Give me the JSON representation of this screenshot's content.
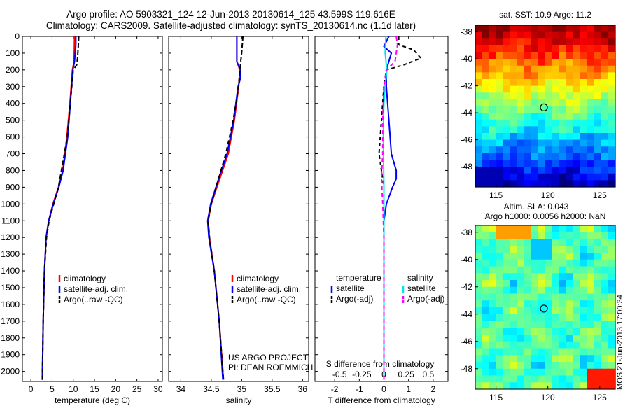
{
  "header": {
    "line1": "Argo profile: AO 5903321_124 12-Jun-2013 20130614_125 43.599S 119.616E",
    "line2": "Climatology: CARS2009. Satellite-adjusted climatology: synTS_20130614.nc (1.1d later)"
  },
  "stamp": "IMOS 21-Jun-2013 17:00:34",
  "colors": {
    "climatology": "#ff0000",
    "satellite": "#0000ff",
    "argo": "#000000",
    "satellite_s": "#00e5ee",
    "argo_s": "#ff00ff"
  },
  "chart_data": [
    {
      "id": "temp",
      "type": "line",
      "xlabel": "temperature (deg C)",
      "ylabel": "",
      "xlim": [
        -2,
        31
      ],
      "ylim": [
        2060,
        0
      ],
      "xticks": [
        0,
        5,
        10,
        15,
        20,
        25,
        30
      ],
      "yticks": [
        0,
        100,
        200,
        300,
        400,
        500,
        600,
        700,
        800,
        900,
        1000,
        1100,
        1200,
        1300,
        1400,
        1500,
        1600,
        1700,
        1800,
        1900,
        2000
      ],
      "legend": [
        "climatology",
        "satellite-adj. clim.",
        "Argo(..raw -QC)"
      ],
      "legend_position": "lower-right",
      "series": [
        {
          "name": "climatology",
          "color": "#ff0000",
          "dash": "",
          "y": [
            0,
            150,
            200,
            400,
            600,
            800,
            900,
            1000,
            1100,
            1200,
            1400,
            1700,
            2050
          ],
          "values": [
            10.3,
            10.2,
            9.8,
            9.2,
            8.5,
            7.5,
            6.5,
            5.2,
            4.2,
            3.6,
            3.2,
            2.9,
            2.7
          ]
        },
        {
          "name": "satellite-adj. clim.",
          "color": "#0000ff",
          "dash": "",
          "y": [
            0,
            50,
            150,
            200,
            400,
            600,
            800,
            900,
            1000,
            1100,
            1200,
            1400,
            1700,
            2050
          ],
          "values": [
            10.6,
            10.6,
            10.3,
            9.9,
            9.3,
            8.7,
            7.6,
            6.6,
            5.3,
            4.2,
            3.6,
            3.2,
            2.9,
            2.7
          ]
        },
        {
          "name": "Argo(..raw -QC)",
          "color": "#000000",
          "dash": "6,4",
          "y": [
            0,
            50,
            130,
            170,
            200,
            400,
            600,
            800,
            900,
            1000,
            1100,
            1200,
            1400,
            1700,
            2050
          ],
          "values": [
            11.3,
            11.2,
            11.0,
            10.8,
            10.0,
            9.3,
            8.6,
            7.2,
            6.5,
            5.4,
            4.3,
            3.7,
            3.2,
            2.9,
            2.7
          ]
        }
      ]
    },
    {
      "id": "salt",
      "type": "line",
      "xlabel": "salinity",
      "ylabel": "",
      "xlim": [
        33.8,
        36.1
      ],
      "ylim": [
        2060,
        0
      ],
      "xticks": [
        34,
        34.5,
        35,
        35.5,
        36
      ],
      "xtick_labels": [
        "34",
        "34.5",
        "35",
        "35.5",
        "36"
      ],
      "legend": [
        "climatology",
        "satellite-adj. clim.",
        "Argo(..raw -QC)"
      ],
      "legend_position": "lower-right",
      "annotation": [
        "US ARGO PROJECT",
        "PI: DEAN ROEMMICH"
      ],
      "series": [
        {
          "name": "climatology",
          "color": "#ff0000",
          "dash": "",
          "y": [
            0,
            150,
            200,
            300,
            500,
            700,
            850,
            1000,
            1100,
            1200,
            1400,
            1700,
            2050
          ],
          "values": [
            34.92,
            34.92,
            34.97,
            34.95,
            34.88,
            34.78,
            34.64,
            34.5,
            34.45,
            34.47,
            34.55,
            34.63,
            34.7
          ]
        },
        {
          "name": "satellite-adj. clim.",
          "color": "#0000ff",
          "dash": "",
          "y": [
            0,
            150,
            200,
            250,
            300,
            500,
            700,
            850,
            1000,
            1100,
            1200,
            1400,
            1700,
            2050
          ],
          "values": [
            34.92,
            34.92,
            34.98,
            34.98,
            34.94,
            34.87,
            34.76,
            34.62,
            34.49,
            34.44,
            34.46,
            34.55,
            34.63,
            34.69
          ]
        },
        {
          "name": "Argo(..raw -QC)",
          "color": "#000000",
          "dash": "6,4",
          "y": [
            0,
            100,
            200,
            300,
            500,
            700,
            850,
            1000,
            1100,
            1200,
            1400,
            1700,
            2050
          ],
          "values": [
            35.02,
            35.0,
            34.97,
            34.95,
            34.86,
            34.74,
            34.62,
            34.5,
            34.45,
            34.47,
            34.55,
            34.63,
            34.7
          ]
        }
      ]
    },
    {
      "id": "diff",
      "type": "line",
      "xlabel": "T difference from climatology",
      "xlabel_top": "S difference from climatology",
      "xlim": [
        -2.8,
        2.6
      ],
      "ylim": [
        2060,
        0
      ],
      "xticks": [
        -2,
        -1,
        0,
        1,
        2
      ],
      "xticks_top": [
        -0.5,
        -0.25,
        0,
        0.25,
        0.5
      ],
      "xticks_top_labels": [
        "-0.5",
        "-0.25",
        "0",
        "0.25",
        "0.5"
      ],
      "legend_groups": [
        {
          "title": "temperature",
          "items": [
            "satellite",
            "Argo(-adj)"
          ]
        },
        {
          "title": "salinity",
          "items": [
            "satellite",
            "Argo(-adj)"
          ]
        }
      ],
      "series": [
        {
          "name": "temperature satellite",
          "color": "#0000ff",
          "dash": "",
          "y": [
            0,
            60,
            100,
            200,
            300,
            500,
            700,
            800,
            850,
            900,
            1000,
            1100,
            1200,
            1400,
            2050
          ],
          "values": [
            0.2,
            0.0,
            0.3,
            0.1,
            0.1,
            0.2,
            0.3,
            0.5,
            0.5,
            0.35,
            0.1,
            0.0,
            0.0,
            0.0,
            0.0
          ]
        },
        {
          "name": "temperature Argo(-adj)",
          "color": "#000000",
          "dash": "5,4",
          "y": [
            0,
            50,
            80,
            130,
            170,
            200,
            300,
            500,
            700,
            800,
            900,
            1000,
            1100,
            1200,
            1400,
            2050
          ],
          "values": [
            0.6,
            0.6,
            1.2,
            1.5,
            0.8,
            0.1,
            0.0,
            -0.1,
            -0.2,
            -0.1,
            0.0,
            0.0,
            0.0,
            0.0,
            0.0,
            0.0
          ]
        },
        {
          "name": "salinity satellite",
          "color": "#00e5ee",
          "dash": "",
          "y": [
            0,
            100,
            200,
            300,
            400,
            500,
            700,
            900,
            1100,
            1300,
            2050
          ],
          "values": [
            0.08,
            0.05,
            0.12,
            0.05,
            0.0,
            -0.02,
            -0.02,
            0.0,
            0.0,
            0.0,
            0.0
          ]
        },
        {
          "name": "salinity Argo(-adj)",
          "color": "#ff00ff",
          "dash": "6,4",
          "y": [
            0,
            50,
            100,
            150,
            200,
            300,
            500,
            700,
            850,
            1000,
            1200,
            2050
          ],
          "values": [
            0.5,
            0.55,
            0.5,
            0.45,
            0.1,
            0.0,
            -0.05,
            -0.05,
            -0.1,
            -0.05,
            0.0,
            0.0
          ]
        }
      ]
    }
  ],
  "maps": [
    {
      "id": "sst",
      "title": "sat. SST: 10.9 Argo: 11.2",
      "xlim": [
        113,
        126.5
      ],
      "ylim": [
        -49.5,
        -37.5
      ],
      "xticks": [
        115,
        120,
        125
      ],
      "yticks": [
        -38,
        -40,
        -42,
        -44,
        -46,
        -48
      ],
      "float_position": [
        119.616,
        -43.599
      ]
    },
    {
      "id": "sla",
      "title_lines": [
        "Altim. SLA: 0.043",
        "Argo h1000: 0.0056 h2000: NaN"
      ],
      "xlim": [
        113,
        126.5
      ],
      "ylim": [
        -49.5,
        -37.5
      ],
      "xticks": [
        115,
        120,
        125
      ],
      "yticks": [
        -38,
        -40,
        -42,
        -44,
        -46,
        -48
      ],
      "float_position": [
        119.616,
        -43.599
      ]
    }
  ]
}
